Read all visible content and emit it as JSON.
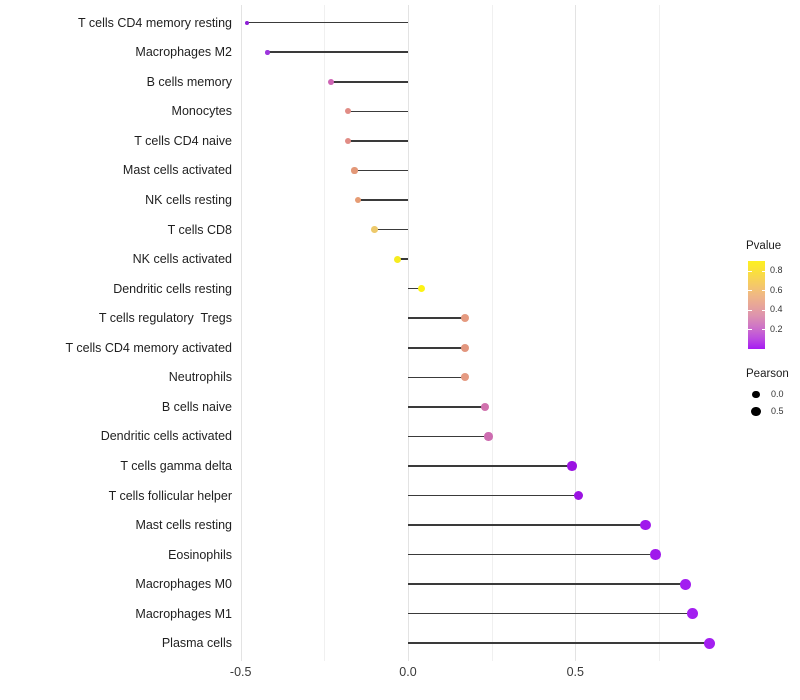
{
  "chart_data": {
    "type": "scatter",
    "variant": "lollipop",
    "orientation": "horizontal",
    "title": "",
    "xlabel": "",
    "ylabel": "",
    "xlim": [
      -0.55,
      0.97
    ],
    "grid": "vertical-only",
    "x_axis": {
      "major_ticks": [
        {
          "value": -0.5,
          "label": "-0.5"
        },
        {
          "value": 0.0,
          "label": "0.0"
        },
        {
          "value": 0.5,
          "label": "0.5"
        }
      ],
      "minor_ticks": [
        -0.25,
        0.25,
        0.75
      ]
    },
    "points": [
      {
        "label": "T cells CD4 memory resting",
        "pearson": -0.48,
        "color": "#8E1FD6"
      },
      {
        "label": "Macrophages M2",
        "pearson": -0.42,
        "color": "#9D35DC"
      },
      {
        "label": "B cells memory",
        "pearson": -0.23,
        "color": "#CE64B4"
      },
      {
        "label": "Monocytes",
        "pearson": -0.18,
        "color": "#E18C85"
      },
      {
        "label": "T cells CD4 naive",
        "pearson": -0.18,
        "color": "#E18C85"
      },
      {
        "label": "Mast cells activated",
        "pearson": -0.16,
        "color": "#E39878"
      },
      {
        "label": "NK cells resting",
        "pearson": -0.15,
        "color": "#E69C74"
      },
      {
        "label": "T cells CD8",
        "pearson": -0.1,
        "color": "#EDC96B"
      },
      {
        "label": "NK cells activated",
        "pearson": -0.03,
        "color": "#F6EC20"
      },
      {
        "label": "Dendritic cells resting",
        "pearson": 0.04,
        "color": "#FDF314"
      },
      {
        "label": "T cells regulatory  Tregs",
        "pearson": 0.17,
        "color": "#E59A80"
      },
      {
        "label": "T cells CD4 memory activated",
        "pearson": 0.17,
        "color": "#E2967E"
      },
      {
        "label": "Neutrophils",
        "pearson": 0.17,
        "color": "#E59A82"
      },
      {
        "label": "B cells naive",
        "pearson": 0.23,
        "color": "#D172AE"
      },
      {
        "label": "Dendritic cells activated",
        "pearson": 0.24,
        "color": "#CD6CB0"
      },
      {
        "label": "T cells gamma delta",
        "pearson": 0.49,
        "color": "#9B13E2"
      },
      {
        "label": "T cells follicular helper",
        "pearson": 0.51,
        "color": "#9B13E2"
      },
      {
        "label": "Mast cells resting",
        "pearson": 0.71,
        "color": "#A018EC"
      },
      {
        "label": "Eosinophils",
        "pearson": 0.74,
        "color": "#A018EC"
      },
      {
        "label": "Macrophages M0",
        "pearson": 0.83,
        "color": "#A31FF0"
      },
      {
        "label": "Macrophages M1",
        "pearson": 0.85,
        "color": "#A31FF0"
      },
      {
        "label": "Plasma cells",
        "pearson": 0.9,
        "color": "#A31FF0"
      }
    ],
    "legends": {
      "pvalue": {
        "title": "Pvalue",
        "domain": [
          0,
          0.9
        ],
        "ticks": [
          {
            "value": 0.8,
            "label": "0.8"
          },
          {
            "value": 0.6,
            "label": "0.6"
          },
          {
            "value": 0.4,
            "label": "0.4"
          },
          {
            "value": 0.2,
            "label": "0.2"
          }
        ],
        "gradient_stops_bottom_to_top": [
          {
            "pos": 0,
            "color": "#A61BF2"
          },
          {
            "pos": 12,
            "color": "#BC4DDF"
          },
          {
            "pos": 25,
            "color": "#CE74C7"
          },
          {
            "pos": 38,
            "color": "#DD93AE"
          },
          {
            "pos": 50,
            "color": "#E8A698"
          },
          {
            "pos": 62,
            "color": "#F0B983"
          },
          {
            "pos": 75,
            "color": "#F6CC62"
          },
          {
            "pos": 88,
            "color": "#FAE03C"
          },
          {
            "pos": 100,
            "color": "#FDF021"
          }
        ]
      },
      "pearson": {
        "title": "Pearson",
        "dot_color": "#000000",
        "entries": [
          {
            "value": 0.0,
            "label": "0.0"
          },
          {
            "value": 0.5,
            "label": "0.5"
          }
        ]
      }
    },
    "style": {
      "segment_color": "#3a3a3a",
      "grid_major_color": "#e3e3e3",
      "grid_minor_color": "#f0f0f0",
      "axis_text_color": "#383838",
      "label_color": "#1f1f1f",
      "background": "#ffffff"
    }
  }
}
